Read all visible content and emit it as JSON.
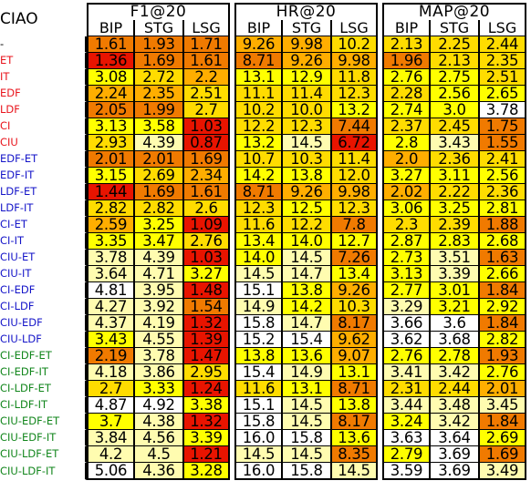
{
  "table": {
    "dataset": "CIAO",
    "groups": [
      "F1@20",
      "HR@20",
      "MAP@20"
    ],
    "sub_headers": [
      "BIP",
      "STG",
      "LSG"
    ],
    "label_colors": {
      "black": "#000000",
      "red": "#e8141c",
      "blue": "#1414c8",
      "green": "#12861c"
    },
    "heat_colors": {
      "white": "#ffffff",
      "light_yellow": "#fffcb0",
      "yellow": "#ffff00",
      "gold": "#ffdc00",
      "orange_light": "#ffae00",
      "orange": "#f07a00",
      "red": "#e81400"
    },
    "rows": [
      {
        "label": "-",
        "color": "black",
        "values": [
          "1.61",
          "1.93",
          "1.71",
          "9.26",
          "9.98",
          "10.2",
          "2.13",
          "2.25",
          "2.44"
        ],
        "heat": [
          "orange",
          "orange",
          "orange",
          "orange_light",
          "orange_light",
          "gold",
          "gold",
          "gold",
          "gold"
        ]
      },
      {
        "label": "ET",
        "color": "red",
        "values": [
          "1.36",
          "1.69",
          "1.61",
          "8.71",
          "9.26",
          "9.98",
          "1.96",
          "2.13",
          "2.35"
        ],
        "heat": [
          "red",
          "orange",
          "orange",
          "orange",
          "orange_light",
          "orange_light",
          "orange",
          "gold",
          "gold"
        ]
      },
      {
        "label": "IT",
        "color": "red",
        "values": [
          "3.08",
          "2.72",
          "2.2",
          "13.1",
          "12.9",
          "11.8",
          "2.76",
          "2.75",
          "2.51"
        ],
        "heat": [
          "yellow",
          "gold",
          "orange_light",
          "yellow",
          "yellow",
          "gold",
          "yellow",
          "yellow",
          "gold"
        ]
      },
      {
        "label": "EDF",
        "color": "red",
        "values": [
          "2.24",
          "2.35",
          "2.51",
          "11.1",
          "11.4",
          "12.3",
          "2.28",
          "2.56",
          "2.65"
        ],
        "heat": [
          "orange_light",
          "orange_light",
          "gold",
          "gold",
          "gold",
          "gold",
          "gold",
          "yellow",
          "yellow"
        ]
      },
      {
        "label": "LDF",
        "color": "red",
        "values": [
          "2.05",
          "1.99",
          "2.7",
          "10.2",
          "10.0",
          "13.2",
          "2.74",
          "3.0",
          "3.78"
        ],
        "heat": [
          "orange",
          "orange",
          "gold",
          "gold",
          "gold",
          "yellow",
          "yellow",
          "yellow",
          "white"
        ]
      },
      {
        "label": "CI",
        "color": "red",
        "values": [
          "3.13",
          "3.58",
          "1.03",
          "12.2",
          "12.3",
          "7.44",
          "2.37",
          "2.45",
          "1.75"
        ],
        "heat": [
          "yellow",
          "yellow",
          "red",
          "gold",
          "gold",
          "orange",
          "gold",
          "gold",
          "orange"
        ]
      },
      {
        "label": "CIU",
        "color": "red",
        "values": [
          "2.93",
          "4.39",
          "0.87",
          "13.2",
          "14.5",
          "6.72",
          "2.8",
          "3.43",
          "1.55"
        ],
        "heat": [
          "gold",
          "light_yellow",
          "red",
          "yellow",
          "light_yellow",
          "red",
          "yellow",
          "light_yellow",
          "orange"
        ]
      },
      {
        "label": "EDF-ET",
        "color": "blue",
        "values": [
          "2.01",
          "2.01",
          "1.69",
          "10.7",
          "10.3",
          "11.4",
          "2.0",
          "2.36",
          "2.41"
        ],
        "heat": [
          "orange",
          "orange",
          "orange",
          "gold",
          "gold",
          "gold",
          "orange_light",
          "gold",
          "gold"
        ]
      },
      {
        "label": "EDF-IT",
        "color": "blue",
        "values": [
          "3.15",
          "2.69",
          "2.34",
          "14.2",
          "13.8",
          "12.0",
          "3.27",
          "3.11",
          "2.56"
        ],
        "heat": [
          "yellow",
          "gold",
          "orange_light",
          "yellow",
          "yellow",
          "gold",
          "yellow",
          "yellow",
          "yellow"
        ]
      },
      {
        "label": "LDF-ET",
        "color": "blue",
        "values": [
          "1.44",
          "1.69",
          "1.61",
          "8.71",
          "9.26",
          "9.98",
          "2.02",
          "2.22",
          "2.36"
        ],
        "heat": [
          "red",
          "orange",
          "orange",
          "orange",
          "orange_light",
          "orange_light",
          "orange_light",
          "gold",
          "gold"
        ]
      },
      {
        "label": "LDF-IT",
        "color": "blue",
        "values": [
          "2.82",
          "2.82",
          "2.6",
          "12.3",
          "12.5",
          "12.3",
          "3.06",
          "3.25",
          "2.81"
        ],
        "heat": [
          "gold",
          "gold",
          "gold",
          "gold",
          "yellow",
          "gold",
          "yellow",
          "yellow",
          "yellow"
        ]
      },
      {
        "label": "CI-ET",
        "color": "blue",
        "values": [
          "2.59",
          "3.25",
          "1.09",
          "11.6",
          "12.2",
          "7.8",
          "2.3",
          "2.39",
          "1.88"
        ],
        "heat": [
          "orange_light",
          "yellow",
          "red",
          "gold",
          "gold",
          "orange",
          "gold",
          "gold",
          "orange"
        ]
      },
      {
        "label": "CI-IT",
        "color": "blue",
        "values": [
          "3.35",
          "3.47",
          "2.76",
          "13.4",
          "14.0",
          "12.7",
          "2.87",
          "2.83",
          "2.68"
        ],
        "heat": [
          "yellow",
          "yellow",
          "gold",
          "yellow",
          "yellow",
          "yellow",
          "yellow",
          "yellow",
          "yellow"
        ]
      },
      {
        "label": "CIU-ET",
        "color": "blue",
        "values": [
          "3.78",
          "4.39",
          "1.03",
          "14.0",
          "14.5",
          "7.26",
          "2.73",
          "3.51",
          "1.63"
        ],
        "heat": [
          "light_yellow",
          "light_yellow",
          "red",
          "yellow",
          "light_yellow",
          "orange",
          "yellow",
          "light_yellow",
          "orange"
        ]
      },
      {
        "label": "CIU-IT",
        "color": "blue",
        "values": [
          "3.64",
          "4.71",
          "3.27",
          "14.5",
          "14.7",
          "13.4",
          "3.13",
          "3.39",
          "2.66"
        ],
        "heat": [
          "light_yellow",
          "light_yellow",
          "yellow",
          "light_yellow",
          "light_yellow",
          "yellow",
          "yellow",
          "light_yellow",
          "yellow"
        ]
      },
      {
        "label": "CI-EDF",
        "color": "blue",
        "values": [
          "4.81",
          "3.95",
          "1.48",
          "15.1",
          "13.8",
          "9.26",
          "2.77",
          "3.01",
          "1.84"
        ],
        "heat": [
          "white",
          "light_yellow",
          "red",
          "white",
          "yellow",
          "orange_light",
          "yellow",
          "yellow",
          "orange"
        ]
      },
      {
        "label": "CI-LDF",
        "color": "blue",
        "values": [
          "4.27",
          "3.92",
          "1.54",
          "14.9",
          "14.2",
          "10.3",
          "3.29",
          "3.21",
          "2.92"
        ],
        "heat": [
          "light_yellow",
          "light_yellow",
          "orange",
          "light_yellow",
          "yellow",
          "gold",
          "light_yellow",
          "yellow",
          "yellow"
        ]
      },
      {
        "label": "CIU-EDF",
        "color": "blue",
        "values": [
          "4.37",
          "4.19",
          "1.32",
          "15.8",
          "14.7",
          "8.17",
          "3.66",
          "3.6",
          "1.84"
        ],
        "heat": [
          "light_yellow",
          "light_yellow",
          "red",
          "white",
          "light_yellow",
          "orange",
          "white",
          "white",
          "orange"
        ]
      },
      {
        "label": "CIU-LDF",
        "color": "blue",
        "values": [
          "3.43",
          "4.55",
          "1.39",
          "15.2",
          "15.4",
          "9.62",
          "3.62",
          "3.68",
          "2.82"
        ],
        "heat": [
          "yellow",
          "light_yellow",
          "red",
          "white",
          "white",
          "orange_light",
          "white",
          "white",
          "yellow"
        ]
      },
      {
        "label": "CI-EDF-ET",
        "color": "green",
        "values": [
          "2.19",
          "3.78",
          "1.47",
          "13.8",
          "13.6",
          "9.07",
          "2.76",
          "2.78",
          "1.93"
        ],
        "heat": [
          "orange",
          "light_yellow",
          "red",
          "yellow",
          "yellow",
          "orange_light",
          "yellow",
          "yellow",
          "orange"
        ]
      },
      {
        "label": "CI-EDF-IT",
        "color": "green",
        "values": [
          "4.18",
          "3.86",
          "2.95",
          "15.4",
          "14.9",
          "13.1",
          "3.41",
          "3.42",
          "2.76"
        ],
        "heat": [
          "light_yellow",
          "light_yellow",
          "gold",
          "white",
          "light_yellow",
          "yellow",
          "light_yellow",
          "light_yellow",
          "yellow"
        ]
      },
      {
        "label": "CI-LDF-ET",
        "color": "green",
        "values": [
          "2.7",
          "3.33",
          "1.24",
          "11.6",
          "13.1",
          "8.71",
          "2.31",
          "2.44",
          "2.01"
        ],
        "heat": [
          "gold",
          "yellow",
          "red",
          "gold",
          "yellow",
          "orange",
          "gold",
          "gold",
          "orange_light"
        ]
      },
      {
        "label": "CI-LDF-IT",
        "color": "green",
        "values": [
          "4.87",
          "4.92",
          "3.38",
          "15.1",
          "14.5",
          "13.8",
          "3.44",
          "3.48",
          "3.45"
        ],
        "heat": [
          "white",
          "white",
          "yellow",
          "white",
          "light_yellow",
          "yellow",
          "light_yellow",
          "light_yellow",
          "light_yellow"
        ]
      },
      {
        "label": "CIU-EDF-ET",
        "color": "green",
        "values": [
          "3.7",
          "4.38",
          "1.32",
          "15.8",
          "14.5",
          "8.17",
          "3.24",
          "3.42",
          "1.84"
        ],
        "heat": [
          "yellow",
          "light_yellow",
          "red",
          "white",
          "light_yellow",
          "orange",
          "yellow",
          "light_yellow",
          "orange"
        ]
      },
      {
        "label": "CIU-EDF-IT",
        "color": "green",
        "values": [
          "3.84",
          "4.56",
          "3.39",
          "16.0",
          "15.8",
          "13.6",
          "3.63",
          "3.64",
          "2.69"
        ],
        "heat": [
          "light_yellow",
          "light_yellow",
          "yellow",
          "white",
          "white",
          "yellow",
          "white",
          "white",
          "yellow"
        ]
      },
      {
        "label": "CIU-LDF-ET",
        "color": "green",
        "values": [
          "4.2",
          "4.5",
          "1.21",
          "14.5",
          "14.5",
          "8.35",
          "2.79",
          "3.69",
          "1.69"
        ],
        "heat": [
          "light_yellow",
          "light_yellow",
          "red",
          "light_yellow",
          "light_yellow",
          "orange",
          "yellow",
          "white",
          "orange"
        ]
      },
      {
        "label": "CIU-LDF-IT",
        "color": "green",
        "values": [
          "5.06",
          "4.36",
          "3.28",
          "16.0",
          "15.8",
          "14.5",
          "3.59",
          "3.69",
          "3.49"
        ],
        "heat": [
          "white",
          "light_yellow",
          "yellow",
          "white",
          "white",
          "light_yellow",
          "white",
          "white",
          "light_yellow"
        ]
      }
    ]
  }
}
